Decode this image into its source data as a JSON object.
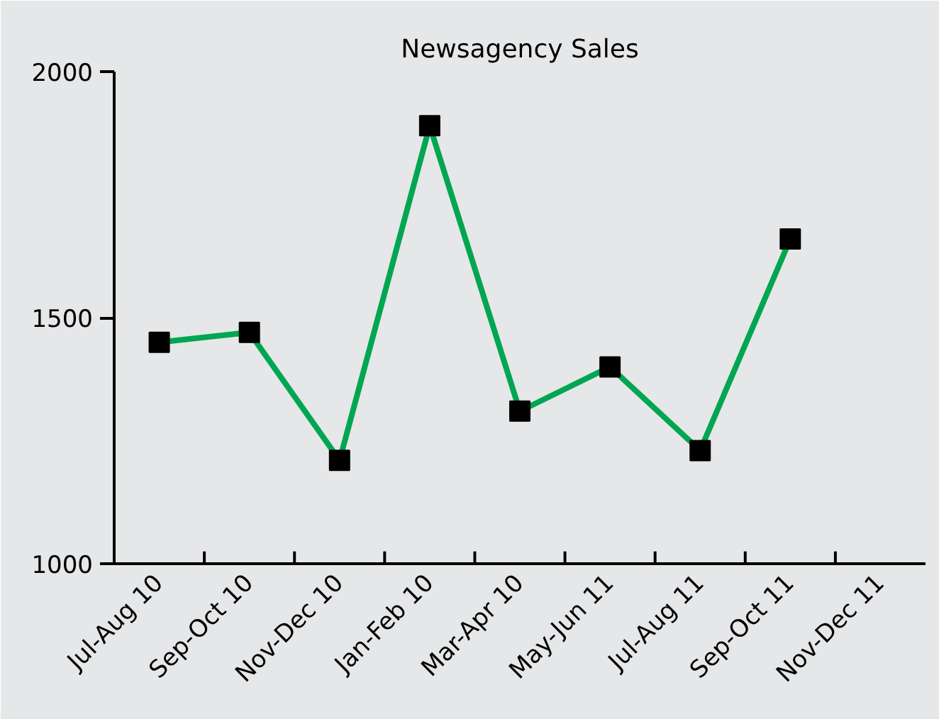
{
  "chart_data": {
    "type": "line",
    "title": "Newsagency Sales",
    "categories": [
      "Jul-Aug 10",
      "Sep-Oct 10",
      "Nov-Dec 10",
      "Jan-Feb 10",
      "Mar-Apr 10",
      "May-Jun 11",
      "Jul-Aug 11",
      "Sep-Oct 11",
      "Nov-Dec 11"
    ],
    "series": [
      {
        "color": "#00a651",
        "values": [
          1450,
          1470,
          1210,
          1890,
          1310,
          1400,
          1230,
          1660,
          null
        ]
      }
    ],
    "ylim": [
      1000,
      2000
    ],
    "yticks": [
      1000,
      1500,
      2000
    ],
    "marker": "square",
    "line_style": "solid"
  }
}
